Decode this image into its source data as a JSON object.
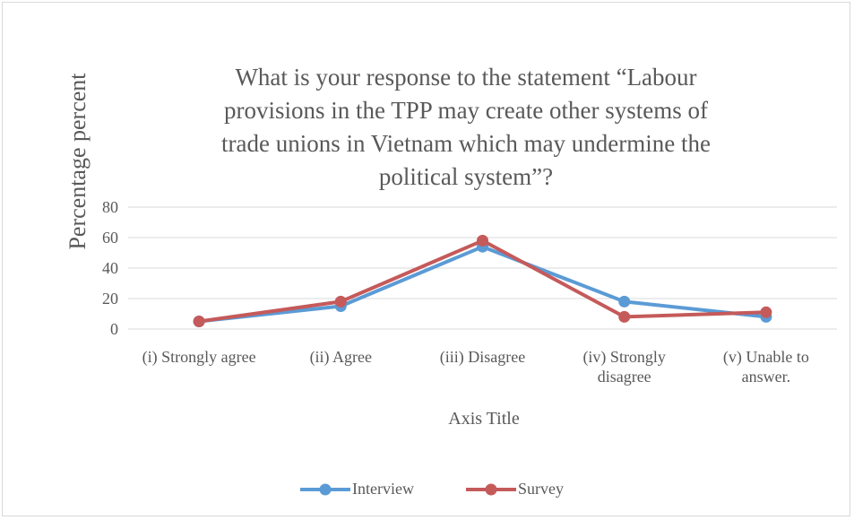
{
  "chart_data": {
    "type": "line",
    "title": "What is your response to the statement “Labour provisions in the TPP may create other systems of trade unions in Vietnam which may undermine the political system”?",
    "x_axis_title": "Axis Title",
    "y_axis_title": "Percentage  percent",
    "categories": [
      "(i) Strongly agree",
      "(ii) Agree",
      "(iii) Disagree",
      "(iv) Strongly disagree",
      "(v) Unable to answer."
    ],
    "series": [
      {
        "name": "Interview",
        "color": "#5b9bd5",
        "values": [
          5,
          15,
          54,
          18,
          8
        ]
      },
      {
        "name": "Survey",
        "color": "#c55a5a",
        "values": [
          5,
          18,
          58,
          8,
          11
        ]
      }
    ],
    "ylim": [
      0,
      80
    ],
    "yticks": [
      0,
      20,
      40,
      60,
      80
    ],
    "grid": true,
    "legend": "bottom"
  }
}
